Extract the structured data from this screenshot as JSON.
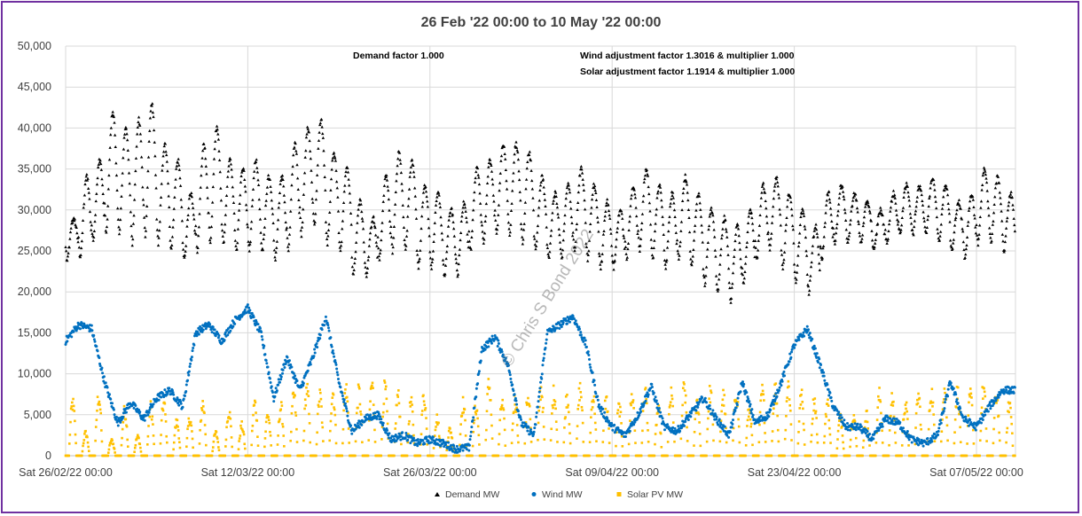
{
  "chart_data": {
    "type": "scatter",
    "title": "26 Feb '22 00:00 to 10 May '22 00:00",
    "x_range": [
      "2022-02-26",
      "2022-05-10"
    ],
    "xtick_labels": [
      "Sat 26/02/22 00:00",
      "Sat 12/03/22 00:00",
      "Sat 26/03/22 00:00",
      "Sat 09/04/22 00:00",
      "Sat 23/04/22 00:00",
      "Sat 07/05/22 00:00"
    ],
    "ylim": [
      0,
      50000
    ],
    "ytick_labels": [
      "0",
      "5,000",
      "10,000",
      "15,000",
      "20,000",
      "25,000",
      "30,000",
      "35,000",
      "40,000",
      "45,000",
      "50,000"
    ],
    "grid": true,
    "legend_position": "bottom",
    "annotations": {
      "demand": "Demand factor 1.000",
      "wind": "Wind adjustment factor 1.3016 & multiplier 1.000",
      "solar": "Solar adjustment factor 1.1914 & multiplier 1.000",
      "watermark": "© Chris S Bond 2022"
    },
    "series": [
      {
        "name": "Demand MW",
        "color": "#000000",
        "marker": "triangle",
        "daily_peak": [
          29000,
          34000,
          36000,
          42000,
          40000,
          41000,
          43000,
          38000,
          36000,
          32000,
          38000,
          40000,
          36000,
          35000,
          36000,
          34000,
          34000,
          38000,
          40000,
          41000,
          37000,
          35000,
          31000,
          29000,
          34000,
          37000,
          36000,
          33000,
          32000,
          30000,
          31000,
          35000,
          36000,
          38000,
          38000,
          37000,
          34000,
          32000,
          33000,
          35000,
          33000,
          31000,
          30000,
          33000,
          35000,
          33000,
          32000,
          34000,
          32000,
          30000,
          29000,
          28000,
          30000,
          33000,
          34000,
          32000,
          30000,
          28000,
          32000,
          33000,
          32000,
          31000,
          30000,
          32000,
          33000,
          33000,
          34000,
          33000,
          31000,
          32000,
          35000,
          34000,
          32000
        ],
        "daily_trough": [
          24000,
          24000,
          26000,
          27000,
          27000,
          26000,
          27000,
          26000,
          25000,
          24000,
          25000,
          26000,
          26000,
          25000,
          25000,
          25000,
          24000,
          25000,
          27000,
          28000,
          26000,
          25000,
          22000,
          22000,
          24000,
          25000,
          25000,
          23000,
          23000,
          22000,
          22000,
          25000,
          26000,
          27000,
          27000,
          26000,
          25000,
          24000,
          24000,
          25000,
          24000,
          23000,
          23000,
          24000,
          25000,
          24000,
          23000,
          24000,
          23000,
          21000,
          20000,
          19000,
          21000,
          24000,
          25000,
          23000,
          21000,
          20000,
          24000,
          26000,
          26000,
          26000,
          25000,
          26000,
          27000,
          27000,
          27000,
          26000,
          25000,
          24000,
          26000,
          26000,
          25000
        ]
      },
      {
        "name": "Wind MW",
        "color": "#0070c0",
        "marker": "circle",
        "daily_mean": [
          14000,
          16000,
          15500,
          9000,
          4000,
          6500,
          4500,
          7000,
          8000,
          6000,
          15000,
          16000,
          14000,
          16500,
          18000,
          15000,
          7000,
          12000,
          8000,
          12000,
          17000,
          9000,
          3000,
          4500,
          5000,
          2000,
          2500,
          1500,
          2000,
          1500,
          800,
          1000,
          13000,
          14500,
          11000,
          4000,
          2500,
          15000,
          16000,
          17000,
          13500,
          6000,
          3500,
          2500,
          5000,
          8500,
          3500,
          3000,
          5000,
          7000,
          4500,
          2500,
          9000,
          4000,
          5000,
          9000,
          13500,
          15500,
          11000,
          6000,
          3500,
          3500,
          2000,
          4500,
          4000,
          2000,
          1500,
          2500,
          9000,
          4500,
          3500,
          6000,
          8000
        ]
      },
      {
        "name": "Solar PV MW",
        "color": "#ffc000",
        "marker": "square",
        "daily_peak": [
          7000,
          3000,
          8000,
          2000,
          6000,
          2500,
          6500,
          7000,
          4500,
          5000,
          7000,
          3000,
          6000,
          4000,
          7000,
          5500,
          6500,
          8000,
          9000,
          8000,
          8500,
          9000,
          8500,
          9500,
          9000,
          8000,
          7000,
          8000,
          5000,
          3500,
          7000,
          6500,
          9500,
          7000,
          7500,
          8000,
          9000,
          8500,
          8000,
          9000,
          8000,
          7500,
          6500,
          8000,
          8500,
          6000,
          8000,
          9000,
          7000,
          8500,
          8000,
          8500,
          6000,
          8500,
          9000,
          9500,
          8000,
          7500,
          7000,
          5000,
          5500,
          5500,
          8000,
          7500,
          7000,
          8000,
          8500,
          9000,
          8500,
          8000,
          9000,
          8000,
          7000
        ]
      }
    ]
  }
}
